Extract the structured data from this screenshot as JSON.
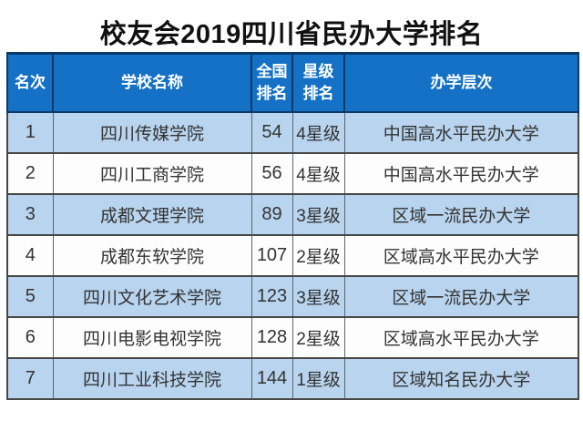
{
  "title": "校友会2019四川省民办大学排名",
  "colors": {
    "header_bg": "#1471c6",
    "header_text": "#ffffff",
    "header_border": "#0b3a68",
    "row_odd_bg": "#b9d4ee",
    "row_even_bg": "#fdfdfe",
    "border_dark": "#474747",
    "divider_gray": "#5a6472",
    "body_text": "#333333",
    "title_color": "#111111"
  },
  "table": {
    "columns": [
      {
        "key": "rank",
        "label": "名次"
      },
      {
        "key": "school",
        "label": "学校名称"
      },
      {
        "key": "national_rank",
        "label": "全国\n排名"
      },
      {
        "key": "star_rating",
        "label": "星级\n排名"
      },
      {
        "key": "level",
        "label": "办学层次"
      }
    ],
    "rows": [
      {
        "rank": "1",
        "school": "四川传媒学院",
        "national_rank": "54",
        "star_rating": "4星级",
        "level": "中国高水平民办大学"
      },
      {
        "rank": "2",
        "school": "四川工商学院",
        "national_rank": "56",
        "star_rating": "4星级",
        "level": "中国高水平民办大学"
      },
      {
        "rank": "3",
        "school": "成都文理学院",
        "national_rank": "89",
        "star_rating": "3星级",
        "level": "区域一流民办大学"
      },
      {
        "rank": "4",
        "school": "成都东软学院",
        "national_rank": "107",
        "star_rating": "2星级",
        "level": "区域高水平民办大学"
      },
      {
        "rank": "5",
        "school": "四川文化艺术学院",
        "national_rank": "123",
        "star_rating": "3星级",
        "level": "区域一流民办大学"
      },
      {
        "rank": "6",
        "school": "四川电影电视学院",
        "national_rank": "128",
        "star_rating": "2星级",
        "level": "区域高水平民办大学"
      },
      {
        "rank": "7",
        "school": "四川工业科技学院",
        "national_rank": "144",
        "star_rating": "1星级",
        "level": "区域知名民办大学"
      }
    ]
  },
  "chart_data": {
    "type": "table",
    "title": "校友会2019四川省民办大学排名",
    "columns": [
      "名次",
      "学校名称",
      "全国排名",
      "星级排名",
      "办学层次"
    ],
    "rows": [
      [
        "1",
        "四川传媒学院",
        "54",
        "4星级",
        "中国高水平民办大学"
      ],
      [
        "2",
        "四川工商学院",
        "56",
        "4星级",
        "中国高水平民办大学"
      ],
      [
        "3",
        "成都文理学院",
        "89",
        "3星级",
        "区域一流民办大学"
      ],
      [
        "4",
        "成都东软学院",
        "107",
        "2星级",
        "区域高水平民办大学"
      ],
      [
        "5",
        "四川文化艺术学院",
        "123",
        "3星级",
        "区域一流民办大学"
      ],
      [
        "6",
        "四川电影电视学院",
        "128",
        "2星级",
        "区域高水平民办大学"
      ],
      [
        "7",
        "四川工业科技学院",
        "144",
        "1星级",
        "区域知名民办大学"
      ]
    ],
    "layout_hints": {
      "header_style": "blue background, white bold text",
      "row_striping": "odd rows light blue, even rows white",
      "alignment": "all cells centered"
    }
  }
}
